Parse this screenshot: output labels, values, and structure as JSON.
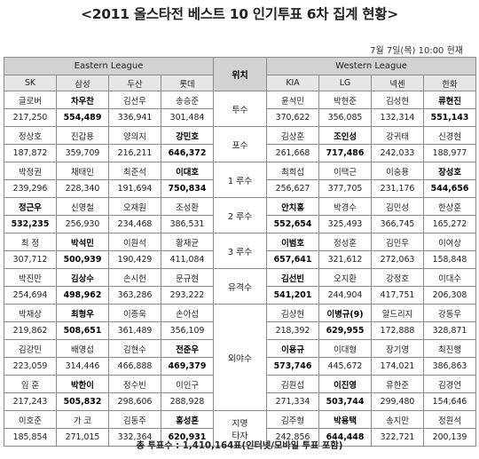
{
  "title": "<2011 올스타전 베스트 10 인기투표 6차 집계 현황>",
  "date": "7월 7일(목) 10:00  현재",
  "eastern_label": "Eastern League",
  "position_header": "위치",
  "western_label": "Western League",
  "east_teams": [
    "SK",
    "삼성",
    "두산",
    "롯데"
  ],
  "west_teams": [
    "KIA",
    "LG",
    "넥센",
    "한화"
  ],
  "rows": [
    {
      "pos": "투수",
      "east": [
        {
          "name": "글로버",
          "votes": "217,250"
        },
        {
          "name": "차우찬",
          "votes": "554,489",
          "bold": true
        },
        {
          "name": "김선우",
          "votes": "336,941"
        },
        {
          "name": "송승준",
          "votes": "301,484"
        }
      ],
      "west": [
        {
          "name": "윤석민",
          "votes": "370,622"
        },
        {
          "name": "박현준",
          "votes": "356,085"
        },
        {
          "name": "김성현",
          "votes": "132,314"
        },
        {
          "name": "류현진",
          "votes": "551,143",
          "bold": true
        }
      ]
    },
    {
      "pos": "포수",
      "east": [
        {
          "name": "정상호",
          "votes": "187,872"
        },
        {
          "name": "진갑용",
          "votes": "359,709"
        },
        {
          "name": "양의지",
          "votes": "216,211"
        },
        {
          "name": "강민호",
          "votes": "646,372",
          "bold": true
        }
      ],
      "west": [
        {
          "name": "김상훈",
          "votes": "261,668"
        },
        {
          "name": "조인성",
          "votes": "717,486",
          "bold": true
        },
        {
          "name": "강귀태",
          "votes": "242,033"
        },
        {
          "name": "신경현",
          "votes": "188,977"
        }
      ]
    },
    {
      "pos": "1 루수",
      "east": [
        {
          "name": "박정권",
          "votes": "239,296"
        },
        {
          "name": "채태인",
          "votes": "228,340"
        },
        {
          "name": "최준석",
          "votes": "191,694"
        },
        {
          "name": "이대호",
          "votes": "750,834",
          "bold": true
        }
      ],
      "west": [
        {
          "name": "최희섭",
          "votes": "256,627"
        },
        {
          "name": "이택근",
          "votes": "377,705"
        },
        {
          "name": "이숭용",
          "votes": "231,176"
        },
        {
          "name": "장성호",
          "votes": "544,656",
          "bold": true
        }
      ]
    },
    {
      "pos": "2 루수",
      "east": [
        {
          "name": "정근우",
          "votes": "532,235",
          "bold": true
        },
        {
          "name": "신명철",
          "votes": "256,930"
        },
        {
          "name": "오재원",
          "votes": "234,468"
        },
        {
          "name": "조성환",
          "votes": "386,531"
        }
      ],
      "west": [
        {
          "name": "안치홍",
          "votes": "552,654",
          "bold": true
        },
        {
          "name": "박경수",
          "votes": "325,493"
        },
        {
          "name": "김민성",
          "votes": "366,745"
        },
        {
          "name": "한상훈",
          "votes": "165,272"
        }
      ]
    },
    {
      "pos": "3 루수",
      "east": [
        {
          "name": "최  정",
          "votes": "307,712"
        },
        {
          "name": "박석민",
          "votes": "500,939",
          "bold": true
        },
        {
          "name": "이원석",
          "votes": "190,429"
        },
        {
          "name": "황재균",
          "votes": "411,084"
        }
      ],
      "west": [
        {
          "name": "이범호",
          "votes": "657,641",
          "bold": true
        },
        {
          "name": "정성훈",
          "votes": "321,612"
        },
        {
          "name": "김민우",
          "votes": "272,063"
        },
        {
          "name": "이여상",
          "votes": "158,848"
        }
      ]
    },
    {
      "pos": "유격수",
      "east": [
        {
          "name": "박진만",
          "votes": "254,694"
        },
        {
          "name": "김상수",
          "votes": "498,962",
          "bold": true
        },
        {
          "name": "손시헌",
          "votes": "363,286"
        },
        {
          "name": "문규현",
          "votes": "293,222"
        }
      ],
      "west": [
        {
          "name": "김선빈",
          "votes": "541,201",
          "bold": true
        },
        {
          "name": "오지환",
          "votes": "244,904"
        },
        {
          "name": "강정호",
          "votes": "417,751"
        },
        {
          "name": "이대수",
          "votes": "206,308"
        }
      ]
    }
  ],
  "outfield_pos": "외야수",
  "outfield": [
    {
      "east": [
        {
          "name": "박재상",
          "votes": "219,862"
        },
        {
          "name": "최형우",
          "votes": "508,651",
          "bold": true
        },
        {
          "name": "이종욱",
          "votes": "361,489"
        },
        {
          "name": "손아섭",
          "votes": "356,109"
        }
      ],
      "west": [
        {
          "name": "김상현",
          "votes": "218,392"
        },
        {
          "name": "이병규(9)",
          "votes": "629,955",
          "bold": true
        },
        {
          "name": "알드리지",
          "votes": "172,888"
        },
        {
          "name": "강동우",
          "votes": "328,871"
        }
      ]
    },
    {
      "east": [
        {
          "name": "김강민",
          "votes": "223,059"
        },
        {
          "name": "배영섭",
          "votes": "314,446"
        },
        {
          "name": "김현수",
          "votes": "466,888"
        },
        {
          "name": "전준우",
          "votes": "469,379",
          "bold": true
        }
      ],
      "west": [
        {
          "name": "이용규",
          "votes": "573,746",
          "bold": true
        },
        {
          "name": "이대형",
          "votes": "445,672"
        },
        {
          "name": "장기영",
          "votes": "174,021"
        },
        {
          "name": "최진행",
          "votes": "386,863"
        }
      ]
    },
    {
      "east": [
        {
          "name": "임  훈",
          "votes": "217,243"
        },
        {
          "name": "박한이",
          "votes": "505,832",
          "bold": true
        },
        {
          "name": "정수빈",
          "votes": "298,606"
        },
        {
          "name": "이인구",
          "votes": "288,928"
        }
      ],
      "west": [
        {
          "name": "김원섭",
          "votes": "271,334"
        },
        {
          "name": "이진영",
          "votes": "503,744",
          "bold": true
        },
        {
          "name": "유한준",
          "votes": "299,480"
        },
        {
          "name": "김경언",
          "votes": "154,646"
        }
      ]
    }
  ],
  "dh": {
    "pos_line1": "지명",
    "pos_line2": "타자",
    "east": [
      {
        "name": "이호준",
        "votes": "185,854"
      },
      {
        "name": "가  코",
        "votes": "271,015"
      },
      {
        "name": "김동주",
        "votes": "332,364"
      },
      {
        "name": "홍성흔",
        "votes": "620,931",
        "bold": true
      }
    ],
    "west": [
      {
        "name": "김주형",
        "votes": "242,856"
      },
      {
        "name": "박용택",
        "votes": "644,448",
        "bold": true
      },
      {
        "name": "송지만",
        "votes": "322,721"
      },
      {
        "name": "정원석",
        "votes": "200,139"
      }
    ]
  },
  "total": "총  투표수 : 1,410,164표(인터넷/모바일 투표 포함)"
}
